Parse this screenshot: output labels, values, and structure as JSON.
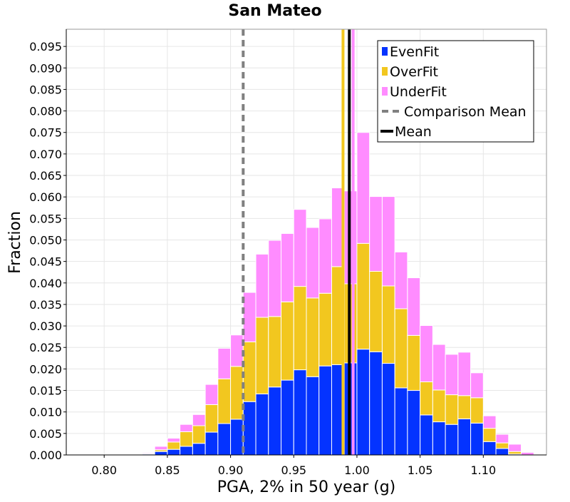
{
  "chart_data": {
    "type": "bar",
    "stacked": true,
    "title": "San Mateo",
    "xlabel": "PGA, 2% in 50 year (g)",
    "ylabel": "Fraction",
    "xlim": [
      0.77,
      1.15
    ],
    "ylim": [
      0.0,
      0.099
    ],
    "xticks": [
      "0.80",
      "0.85",
      "0.90",
      "0.95",
      "1.00",
      "1.05",
      "1.10"
    ],
    "yticks": [
      "0.000",
      "0.005",
      "0.010",
      "0.015",
      "0.020",
      "0.025",
      "0.030",
      "0.035",
      "0.040",
      "0.045",
      "0.050",
      "0.055",
      "0.060",
      "0.065",
      "0.070",
      "0.075",
      "0.080",
      "0.085",
      "0.090",
      "0.095"
    ],
    "grid": true,
    "legend_position": "top-right",
    "bin_width": 0.01,
    "bins": [
      0.835,
      0.845,
      0.855,
      0.865,
      0.875,
      0.885,
      0.895,
      0.905,
      0.915,
      0.925,
      0.935,
      0.945,
      0.955,
      0.965,
      0.975,
      0.985,
      0.995,
      1.005,
      1.015,
      1.025,
      1.035,
      1.045,
      1.055,
      1.065,
      1.075,
      1.085,
      1.095,
      1.105,
      1.115,
      1.125,
      1.135
    ],
    "series": [
      {
        "name": "EvenFit",
        "color": "#0433ff",
        "values": [
          0.0002,
          0.0008,
          0.0013,
          0.002,
          0.0027,
          0.0053,
          0.0073,
          0.0083,
          0.0124,
          0.0142,
          0.0158,
          0.0174,
          0.0198,
          0.0182,
          0.0207,
          0.021,
          0.0214,
          0.0246,
          0.024,
          0.0213,
          0.0156,
          0.015,
          0.0093,
          0.0077,
          0.0071,
          0.0084,
          0.0074,
          0.0031,
          0.0015,
          0.0002,
          0.0
        ]
      },
      {
        "name": "OverFit",
        "color": "#f2c71f",
        "values": [
          0.0001,
          0.0004,
          0.0017,
          0.0034,
          0.0041,
          0.0064,
          0.0104,
          0.0123,
          0.0139,
          0.0178,
          0.0164,
          0.0182,
          0.0194,
          0.0183,
          0.0169,
          0.0228,
          0.0184,
          0.0246,
          0.0187,
          0.018,
          0.0184,
          0.0128,
          0.0077,
          0.0074,
          0.0069,
          0.0054,
          0.0059,
          0.0031,
          0.0013,
          0.0006,
          0.0
        ]
      },
      {
        "name": "UnderFit",
        "color": "#ff8cff",
        "values": [
          0.0002,
          0.0008,
          0.0009,
          0.0017,
          0.0026,
          0.0047,
          0.0071,
          0.0073,
          0.0115,
          0.0147,
          0.0177,
          0.0159,
          0.0179,
          0.0164,
          0.0173,
          0.0183,
          0.0216,
          0.0258,
          0.0174,
          0.0208,
          0.0132,
          0.0134,
          0.0131,
          0.0106,
          0.0094,
          0.0101,
          0.0058,
          0.0029,
          0.002,
          0.0017,
          0.0006
        ]
      }
    ],
    "vertical_lines": [
      {
        "name": "Comparison Mean",
        "x": 0.91,
        "color": "#808080",
        "style": "dashed"
      },
      {
        "name": "Mean",
        "x": 0.994,
        "color": "#000000",
        "style": "solid"
      },
      {
        "x": 0.989,
        "color": "#f2c71f",
        "style": "solid"
      },
      {
        "x": 0.997,
        "color": "#ff8cff",
        "style": "solid"
      }
    ],
    "legend": [
      {
        "label": "EvenFit",
        "marker": "square",
        "color": "#0433ff"
      },
      {
        "label": "OverFit",
        "marker": "square",
        "color": "#f2c71f"
      },
      {
        "label": "UnderFit",
        "marker": "square",
        "color": "#ff8cff"
      },
      {
        "label": "Comparison Mean",
        "marker": "dashed-line",
        "color": "#808080"
      },
      {
        "label": "Mean",
        "marker": "line",
        "color": "#000000"
      }
    ]
  }
}
